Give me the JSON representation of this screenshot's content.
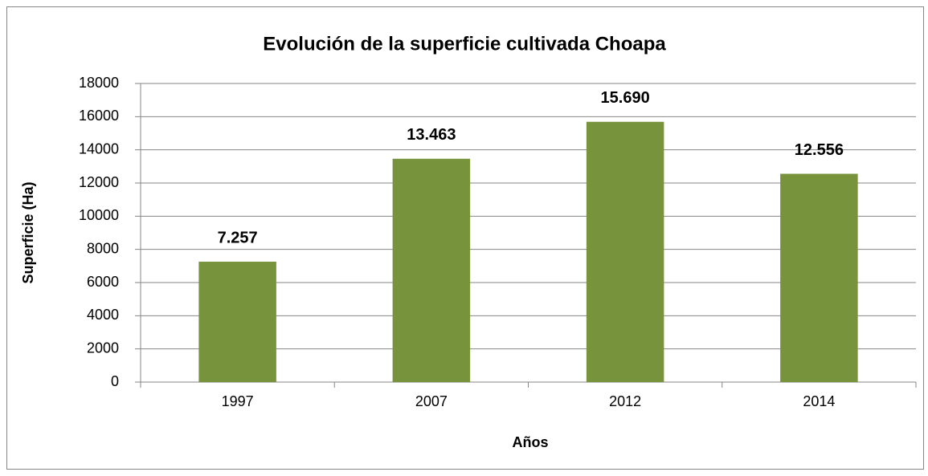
{
  "chart_data": {
    "type": "bar",
    "title": "Evolución de la superficie cultivada Choapa",
    "categories": [
      "1997",
      "2007",
      "2012",
      "2014"
    ],
    "values": [
      7257,
      13463,
      15690,
      12556
    ],
    "value_labels": [
      "7.257",
      "13.463",
      "15.690",
      "12.556"
    ],
    "color": "#77933c",
    "x_label": "Años",
    "y_label": "Superficie (Ha)",
    "ylim": [
      0,
      18000
    ],
    "yticks": [
      0,
      2000,
      4000,
      6000,
      8000,
      10000,
      12000,
      14000,
      16000,
      18000
    ],
    "grid": true
  }
}
